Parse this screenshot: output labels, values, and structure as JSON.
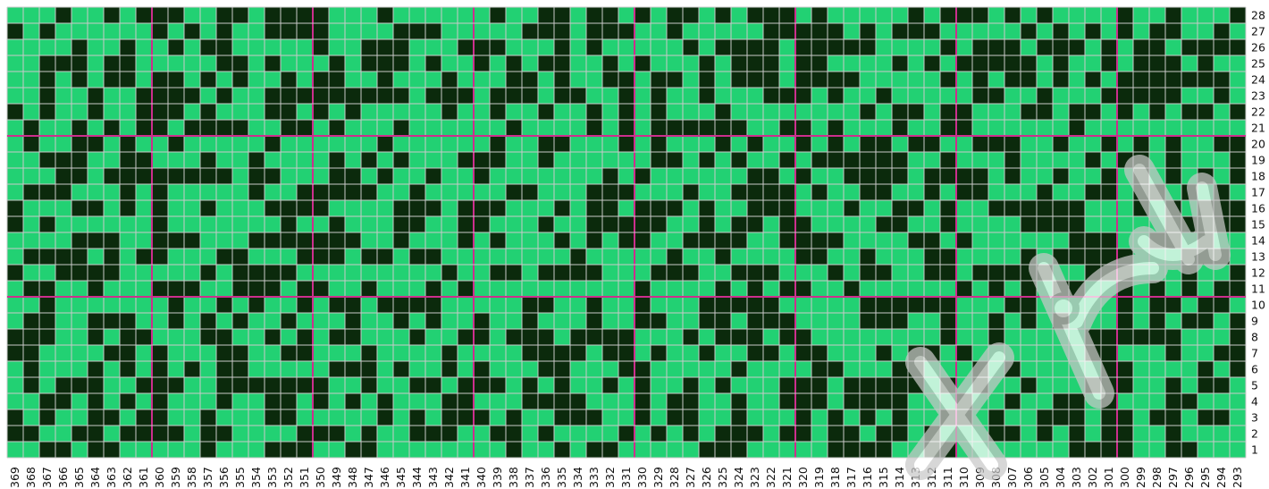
{
  "pattern": {
    "rows": 28,
    "first_column_label": 369,
    "last_column_label": 293,
    "column_labels_descending": true,
    "colors": {
      "filled": "#0b2a0c",
      "empty": "#22d173",
      "grid_line": "#c9c9c9",
      "major_line": "#cc2f8d",
      "highlight_line": "#ffffff"
    },
    "row_labels": [
      "28",
      "27",
      "26",
      "25",
      "24",
      "23",
      "22",
      "21",
      "20",
      "19",
      "18",
      "17",
      "16",
      "15",
      "14",
      "13",
      "12",
      "11",
      "10",
      "9",
      "8",
      "7",
      "6",
      "5",
      "4",
      "3",
      "2",
      "1"
    ],
    "column_labels": [
      "369",
      "368",
      "367",
      "366",
      "365",
      "364",
      "363",
      "362",
      "361",
      "360",
      "359",
      "358",
      "357",
      "356",
      "355",
      "354",
      "353",
      "352",
      "351",
      "350",
      "349",
      "348",
      "347",
      "346",
      "345",
      "344",
      "343",
      "342",
      "341",
      "340",
      "339",
      "338",
      "337",
      "336",
      "335",
      "334",
      "333",
      "332",
      "331",
      "330",
      "329",
      "328",
      "327",
      "326",
      "325",
      "324",
      "323",
      "322",
      "321",
      "320",
      "319",
      "318",
      "317",
      "316",
      "315",
      "314",
      "313",
      "312",
      "311",
      "310",
      "309",
      "308",
      "307",
      "306",
      "305",
      "304",
      "303",
      "302",
      "301",
      "300",
      "299",
      "298",
      "297",
      "296",
      "295",
      "294",
      "293"
    ]
  }
}
